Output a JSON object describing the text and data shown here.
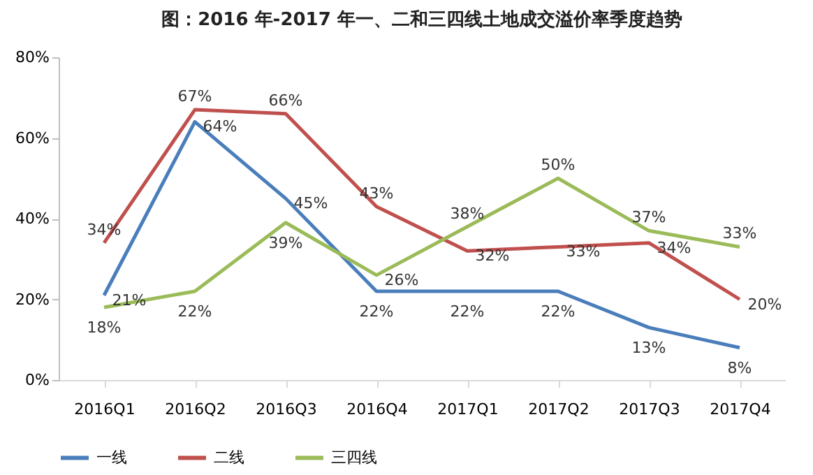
{
  "chart_data": {
    "type": "line",
    "title": "图：2016 年-2017 年一、二和三四线土地成交溢价率季度趋势",
    "categories": [
      "2016Q1",
      "2016Q2",
      "2016Q3",
      "2016Q4",
      "2017Q1",
      "2017Q2",
      "2017Q3",
      "2017Q4"
    ],
    "series": [
      {
        "name": "一线",
        "color": "#4a7ebb",
        "values": [
          21,
          64,
          45,
          22,
          22,
          22,
          13,
          8
        ],
        "value_labels": [
          "21%",
          "64%",
          "45%",
          "22%",
          "22%",
          "22%",
          "13%",
          "8%"
        ]
      },
      {
        "name": "二线",
        "color": "#c0504d",
        "values": [
          34,
          67,
          66,
          43,
          32,
          33,
          34,
          20
        ],
        "value_labels": [
          "34%",
          "67%",
          "66%",
          "43%",
          "32%",
          "33%",
          "34%",
          "20%"
        ]
      },
      {
        "name": "三四线",
        "color": "#9bbb59",
        "values": [
          18,
          22,
          39,
          26,
          38,
          50,
          37,
          33
        ],
        "value_labels": [
          "18%",
          "22%",
          "39%",
          "26%",
          "38%",
          "50%",
          "37%",
          "33%"
        ]
      }
    ],
    "ylim": [
      0,
      80
    ],
    "yticks": [
      {
        "value": 0,
        "label": "0%"
      },
      {
        "value": 20,
        "label": "20%"
      },
      {
        "value": 40,
        "label": "40%"
      },
      {
        "value": 60,
        "label": "60%"
      },
      {
        "value": 80,
        "label": "80%"
      }
    ],
    "legend": "bottom",
    "grid": false,
    "marker": "none",
    "line_style": "solid"
  }
}
